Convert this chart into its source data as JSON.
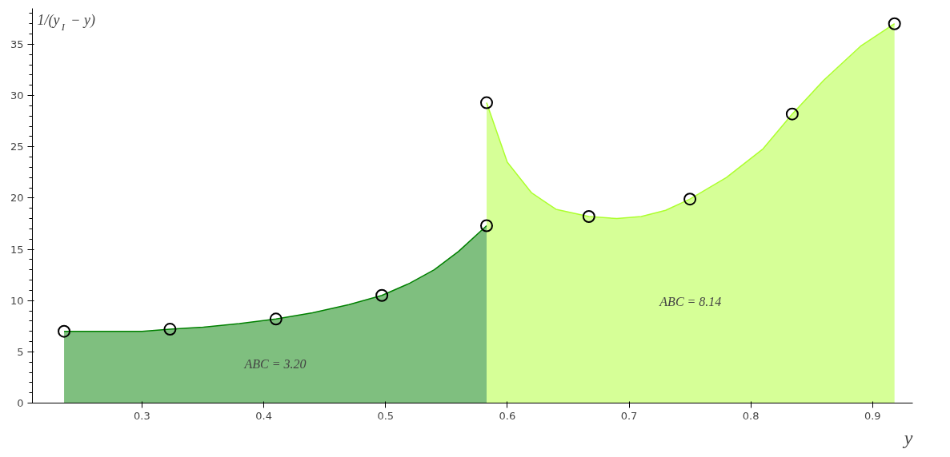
{
  "chart_data": {
    "type": "area",
    "xlabel": "y",
    "ylabel": "1/(y$_{I}$ − y)",
    "xlim": [
      0.21,
      0.933
    ],
    "ylim": [
      0,
      38.5
    ],
    "xticks": [
      0.3,
      0.4,
      0.5,
      0.6,
      0.7,
      0.8,
      0.9
    ],
    "yticks": [
      0,
      5,
      10,
      15,
      20,
      25,
      30,
      35
    ],
    "grid": false,
    "series": [
      {
        "color": "#008000",
        "x": [
          0.236,
          0.26,
          0.28,
          0.3,
          0.323,
          0.35,
          0.38,
          0.41,
          0.44,
          0.47,
          0.497,
          0.52,
          0.54,
          0.56,
          0.583
        ],
        "values": [
          7.0,
          7.0,
          7.0,
          7.0,
          7.2,
          7.4,
          7.75,
          8.2,
          8.8,
          9.6,
          10.5,
          11.7,
          13.0,
          14.8,
          17.3
        ]
      },
      {
        "color": "#adff2f",
        "x": [
          0.583,
          0.6,
          0.62,
          0.64,
          0.667,
          0.69,
          0.71,
          0.73,
          0.75,
          0.78,
          0.81,
          0.834,
          0.86,
          0.89,
          0.918
        ],
        "values": [
          29.3,
          23.5,
          20.5,
          18.9,
          18.2,
          18.0,
          18.2,
          18.8,
          19.9,
          22.0,
          24.8,
          28.2,
          31.5,
          34.8,
          37.0
        ]
      },
      {
        "type": "scatter",
        "color": "#000000",
        "marker": "circle",
        "x": [
          0.236,
          0.323,
          0.41,
          0.497,
          0.583,
          0.583,
          0.667,
          0.75,
          0.834,
          0.918
        ],
        "values": [
          7.0,
          7.2,
          8.2,
          10.5,
          17.3,
          29.3,
          18.2,
          19.9,
          28.2,
          37.0
        ]
      }
    ],
    "annotations": [
      "ABC = 3.20",
      "ABC = 8.14"
    ]
  }
}
